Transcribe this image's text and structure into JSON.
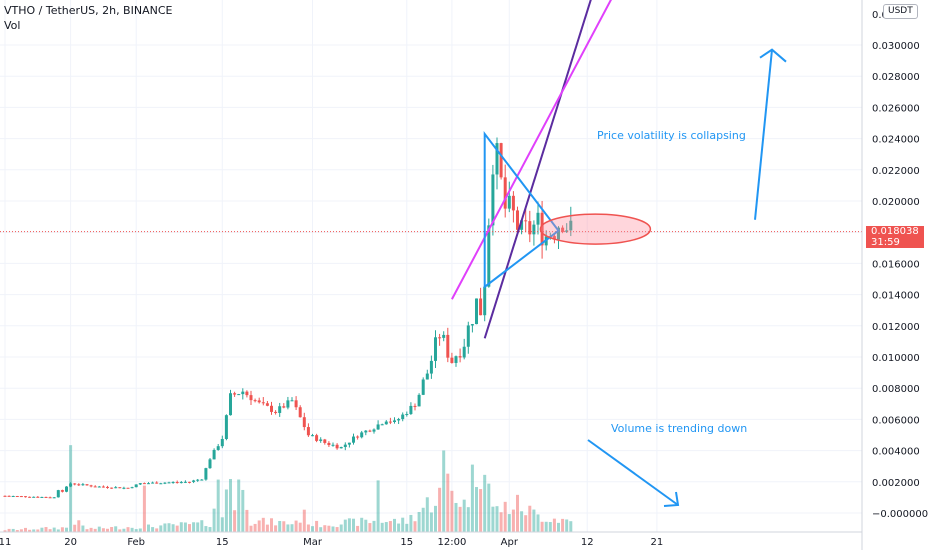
{
  "header": {
    "symbol_line": "VTHO / TetherUS, 2h, BINANCE",
    "volume_label": "Vol"
  },
  "currency": "USDT",
  "last_price": {
    "value": "0.018038",
    "countdown": "31:59",
    "level": 0.018038,
    "color": "#ef5350"
  },
  "annotations": {
    "triangle_note": "Price volatility is collapsing",
    "volume_note": "Volume is trending down",
    "text_color": "#2196f3"
  },
  "chart_data": {
    "type": "candlestick",
    "price_axis": {
      "ticks": [
        "0.030000",
        "0.028000",
        "0.026000",
        "0.024000",
        "0.022000",
        "0.020000",
        "0.018000",
        "0.016000",
        "0.014000",
        "0.012000",
        "0.010000",
        "0.008000",
        "0.006000",
        "0.004000",
        "0.002000",
        "−0.000000"
      ],
      "tick_values": [
        0.03,
        0.028,
        0.026,
        0.024,
        0.022,
        0.02,
        0.018,
        0.016,
        0.014,
        0.012,
        0.01,
        0.008,
        0.006,
        0.004,
        0.002,
        0.0
      ],
      "top_partial_label": "0.0",
      "ylim": [
        -0.001,
        0.0325
      ]
    },
    "time_axis": {
      "ticks": [
        "11",
        "20",
        "Feb",
        "15",
        "Mar",
        "15",
        "12:00",
        "Apr",
        "12",
        "21"
      ],
      "tick_index": [
        0,
        16,
        32,
        53,
        75,
        98,
        109,
        123,
        142,
        159
      ]
    },
    "bars_count": 170,
    "price_path": [
      [
        0,
        0.0011
      ],
      [
        12,
        0.001
      ],
      [
        13,
        0.0015
      ],
      [
        14,
        0.0014
      ],
      [
        16,
        0.0019
      ],
      [
        22,
        0.0017
      ],
      [
        30,
        0.0016
      ],
      [
        33,
        0.0019
      ],
      [
        45,
        0.002
      ],
      [
        48,
        0.0022
      ],
      [
        50,
        0.0035
      ],
      [
        53,
        0.0048
      ],
      [
        55,
        0.0075
      ],
      [
        58,
        0.0078
      ],
      [
        62,
        0.007
      ],
      [
        66,
        0.0065
      ],
      [
        70,
        0.0072
      ],
      [
        74,
        0.005
      ],
      [
        78,
        0.0045
      ],
      [
        82,
        0.0042
      ],
      [
        86,
        0.005
      ],
      [
        90,
        0.0055
      ],
      [
        93,
        0.006
      ],
      [
        95,
        0.0058
      ],
      [
        98,
        0.0065
      ],
      [
        100,
        0.007
      ],
      [
        103,
        0.009
      ],
      [
        106,
        0.0115
      ],
      [
        109,
        0.0098
      ],
      [
        112,
        0.011
      ],
      [
        115,
        0.0135
      ],
      [
        116,
        0.013
      ],
      [
        117,
        0.015
      ],
      [
        118,
        0.019
      ],
      [
        119,
        0.023
      ],
      [
        120,
        0.0225
      ],
      [
        122,
        0.0195
      ],
      [
        124,
        0.019
      ],
      [
        126,
        0.0178
      ],
      [
        128,
        0.0182
      ],
      [
        130,
        0.0185
      ],
      [
        132,
        0.0178
      ],
      [
        134,
        0.0183
      ],
      [
        136,
        0.019
      ],
      [
        138,
        0.018
      ]
    ],
    "volume_path": [
      [
        0,
        0.02
      ],
      [
        15,
        0.04
      ],
      [
        16,
        0.85
      ],
      [
        17,
        0.1
      ],
      [
        20,
        0.03
      ],
      [
        33,
        0.05
      ],
      [
        34,
        0.35
      ],
      [
        35,
        0.05
      ],
      [
        50,
        0.08
      ],
      [
        52,
        0.4
      ],
      [
        53,
        0.15
      ],
      [
        55,
        0.7
      ],
      [
        56,
        0.2
      ],
      [
        58,
        0.6
      ],
      [
        60,
        0.1
      ],
      [
        70,
        0.08
      ],
      [
        73,
        0.15
      ],
      [
        75,
        0.07
      ],
      [
        90,
        0.1
      ],
      [
        91,
        0.55
      ],
      [
        92,
        0.1
      ],
      [
        98,
        0.1
      ],
      [
        106,
        0.35
      ],
      [
        107,
        0.6
      ],
      [
        109,
        0.4
      ],
      [
        112,
        0.25
      ],
      [
        117,
        0.8
      ],
      [
        118,
        0.45
      ],
      [
        119,
        0.2
      ],
      [
        125,
        0.25
      ],
      [
        130,
        0.15
      ],
      [
        138,
        0.1
      ]
    ]
  }
}
